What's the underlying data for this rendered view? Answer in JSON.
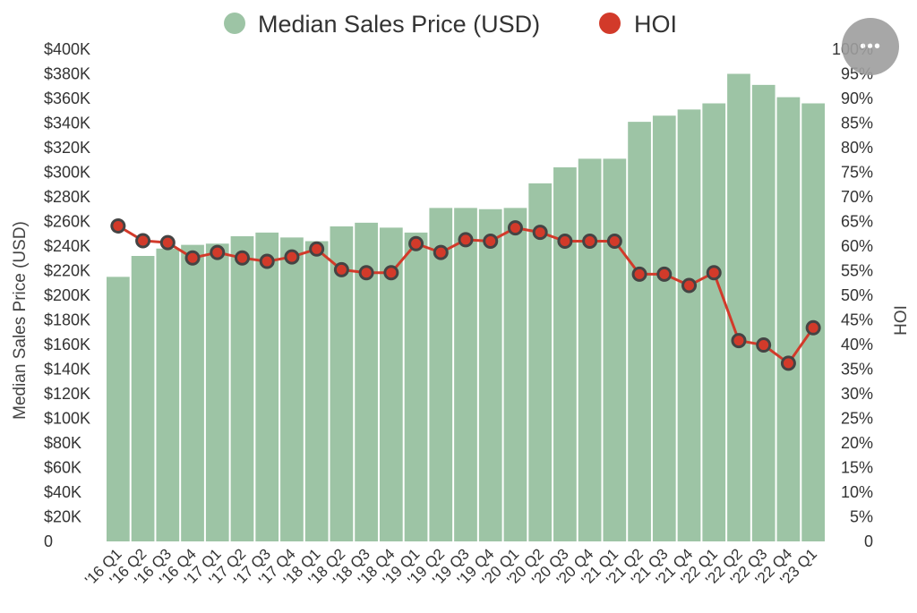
{
  "menu": {
    "more_icon": "ellipsis-icon",
    "more_glyph": "•••"
  },
  "colors": {
    "bar": "#9dc4a5",
    "line": "#d23a2a",
    "marker_stroke": "#444444"
  },
  "chart_data": {
    "type": "bar+line",
    "legend_position": "top-center",
    "grid": false,
    "categories": [
      "'16 Q1",
      "'16 Q2",
      "'16 Q3",
      "'16 Q4",
      "'17 Q1",
      "'17 Q2",
      "'17 Q3",
      "'17 Q4",
      "'18 Q1",
      "'18 Q2",
      "'18 Q3",
      "'18 Q4",
      "'19 Q1",
      "'19 Q2",
      "'19 Q3",
      "'19 Q4",
      "'20 Q1",
      "'20 Q2",
      "'20 Q3",
      "'20 Q4",
      "'21 Q1",
      "'21 Q2",
      "'21 Q3",
      "'21 Q4",
      "'22 Q1",
      "'22 Q2",
      "'22 Q3",
      "'22 Q4",
      "'23 Q1"
    ],
    "series": [
      {
        "name": "Median Sales Price (USD)",
        "type": "bar",
        "axis": "left",
        "values": [
          215000,
          232000,
          238000,
          241000,
          242000,
          248000,
          251000,
          247000,
          244000,
          256000,
          259000,
          255000,
          251000,
          271000,
          271000,
          270000,
          271000,
          291000,
          304000,
          311000,
          311000,
          341000,
          346000,
          351000,
          356000,
          380000,
          371000,
          361000,
          356000
        ]
      },
      {
        "name": "HOI",
        "type": "line",
        "axis": "right",
        "values": [
          64.1,
          61.1,
          60.7,
          57.6,
          58.7,
          57.6,
          56.9,
          57.8,
          59.4,
          55.2,
          54.6,
          54.6,
          60.5,
          58.7,
          61.3,
          61.0,
          63.7,
          62.8,
          61.0,
          61.0,
          61.0,
          54.3,
          54.3,
          52.0,
          54.6,
          40.8,
          39.9,
          36.2,
          43.4
        ]
      }
    ],
    "y_left": {
      "label": "Median Sales Price (USD)",
      "min": 0,
      "max": 400000,
      "step": 20000,
      "tick_labels": [
        "0",
        "$20K",
        "$40K",
        "$60K",
        "$80K",
        "$100K",
        "$120K",
        "$140K",
        "$160K",
        "$180K",
        "$200K",
        "$220K",
        "$240K",
        "$260K",
        "$280K",
        "$300K",
        "$320K",
        "$340K",
        "$360K",
        "$380K",
        "$400K"
      ]
    },
    "y_right": {
      "label": "HOI",
      "min": 0,
      "max": 100,
      "step": 5,
      "tick_labels": [
        "0",
        "5%",
        "10%",
        "15%",
        "20%",
        "25%",
        "30%",
        "35%",
        "40%",
        "45%",
        "50%",
        "55%",
        "60%",
        "65%",
        "70%",
        "75%",
        "80%",
        "85%",
        "90%",
        "95%",
        "100%"
      ]
    }
  }
}
